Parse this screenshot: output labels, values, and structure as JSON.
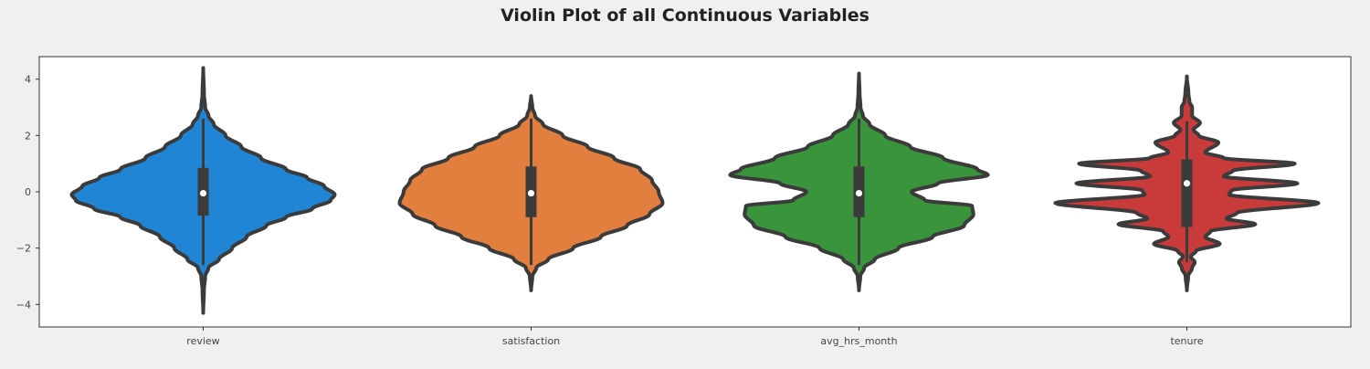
{
  "chart_data": {
    "type": "violin",
    "title": "Violin Plot of all Continuous Variables",
    "xlabel": "",
    "ylabel": "",
    "ylim": [
      -4.8,
      4.8
    ],
    "yticks": [
      -4,
      -2,
      0,
      2,
      4
    ],
    "ytick_labels": [
      "−4",
      "−2",
      "0",
      "2",
      "4"
    ],
    "grid": false,
    "categories": [
      "review",
      "satisfaction",
      "avg_hrs_month",
      "tenure"
    ],
    "colors": [
      "#1f85d4",
      "#e27f3e",
      "#3a943c",
      "#c93b3b"
    ],
    "violins": [
      {
        "name": "review",
        "min": -4.3,
        "max": 4.4,
        "q1": -0.85,
        "median": -0.05,
        "q3": 0.85,
        "whisker_low": -2.6,
        "whisker_high": 2.6,
        "profile": [
          [
            -4.3,
            0.0
          ],
          [
            -3.5,
            0.006
          ],
          [
            -3.0,
            0.015
          ],
          [
            -2.7,
            0.04
          ],
          [
            -2.4,
            0.12
          ],
          [
            -2.0,
            0.22
          ],
          [
            -1.6,
            0.33
          ],
          [
            -1.2,
            0.48
          ],
          [
            -0.9,
            0.63
          ],
          [
            -0.6,
            0.83
          ],
          [
            -0.3,
            0.97
          ],
          [
            -0.1,
            1.0
          ],
          [
            0.2,
            0.92
          ],
          [
            0.5,
            0.79
          ],
          [
            0.8,
            0.63
          ],
          [
            1.2,
            0.44
          ],
          [
            1.6,
            0.29
          ],
          [
            2.0,
            0.17
          ],
          [
            2.4,
            0.08
          ],
          [
            2.7,
            0.04
          ],
          [
            3.0,
            0.015
          ],
          [
            3.5,
            0.006
          ],
          [
            4.4,
            0.0
          ]
        ]
      },
      {
        "name": "satisfaction",
        "min": -3.5,
        "max": 3.4,
        "q1": -0.9,
        "median": -0.05,
        "q3": 0.9,
        "whisker_low": -2.6,
        "whisker_high": 2.6,
        "profile": [
          [
            -3.5,
            0.0
          ],
          [
            -3.0,
            0.01
          ],
          [
            -2.7,
            0.04
          ],
          [
            -2.4,
            0.13
          ],
          [
            -2.0,
            0.32
          ],
          [
            -1.6,
            0.53
          ],
          [
            -1.2,
            0.73
          ],
          [
            -0.8,
            0.9
          ],
          [
            -0.4,
            1.0
          ],
          [
            0.0,
            0.97
          ],
          [
            0.4,
            0.92
          ],
          [
            0.8,
            0.83
          ],
          [
            1.2,
            0.63
          ],
          [
            1.6,
            0.43
          ],
          [
            2.0,
            0.24
          ],
          [
            2.4,
            0.09
          ],
          [
            2.7,
            0.03
          ],
          [
            3.0,
            0.01
          ],
          [
            3.4,
            0.0
          ]
        ]
      },
      {
        "name": "avg_hrs_month",
        "min": -3.5,
        "max": 4.2,
        "q1": -0.9,
        "median": -0.05,
        "q3": 0.9,
        "whisker_low": -2.6,
        "whisker_high": 2.6,
        "profile": [
          [
            -3.5,
            0.0
          ],
          [
            -3.0,
            0.01
          ],
          [
            -2.7,
            0.04
          ],
          [
            -2.4,
            0.12
          ],
          [
            -2.0,
            0.3
          ],
          [
            -1.6,
            0.56
          ],
          [
            -1.2,
            0.8
          ],
          [
            -0.8,
            0.87
          ],
          [
            -0.5,
            0.86
          ],
          [
            -0.3,
            0.5
          ],
          [
            0.0,
            0.4
          ],
          [
            0.3,
            0.6
          ],
          [
            0.6,
            0.98
          ],
          [
            0.8,
            0.9
          ],
          [
            1.2,
            0.64
          ],
          [
            1.6,
            0.39
          ],
          [
            2.0,
            0.2
          ],
          [
            2.4,
            0.08
          ],
          [
            2.7,
            0.03
          ],
          [
            3.0,
            0.012
          ],
          [
            3.5,
            0.005
          ],
          [
            4.2,
            0.0
          ]
        ]
      },
      {
        "name": "tenure",
        "min": -3.5,
        "max": 4.1,
        "q1": -1.25,
        "median": 0.3,
        "q3": 1.15,
        "whisker_low": -2.5,
        "whisker_high": 2.5,
        "profile": [
          [
            -3.5,
            0.0
          ],
          [
            -3.0,
            0.01
          ],
          [
            -2.7,
            0.04
          ],
          [
            -2.5,
            0.06
          ],
          [
            -2.3,
            0.03
          ],
          [
            -2.1,
            0.07
          ],
          [
            -1.85,
            0.25
          ],
          [
            -1.6,
            0.14
          ],
          [
            -1.4,
            0.18
          ],
          [
            -1.15,
            0.52
          ],
          [
            -0.95,
            0.3
          ],
          [
            -0.75,
            0.38
          ],
          [
            -0.4,
            1.0
          ],
          [
            -0.1,
            0.32
          ],
          [
            0.05,
            0.34
          ],
          [
            0.3,
            0.84
          ],
          [
            0.55,
            0.28
          ],
          [
            0.75,
            0.35
          ],
          [
            1.0,
            0.82
          ],
          [
            1.2,
            0.28
          ],
          [
            1.4,
            0.14
          ],
          [
            1.75,
            0.24
          ],
          [
            2.0,
            0.09
          ],
          [
            2.2,
            0.05
          ],
          [
            2.45,
            0.1
          ],
          [
            2.7,
            0.04
          ],
          [
            3.0,
            0.04
          ],
          [
            3.2,
            0.02
          ],
          [
            3.5,
            0.012
          ],
          [
            4.1,
            0.0
          ]
        ]
      }
    ]
  }
}
